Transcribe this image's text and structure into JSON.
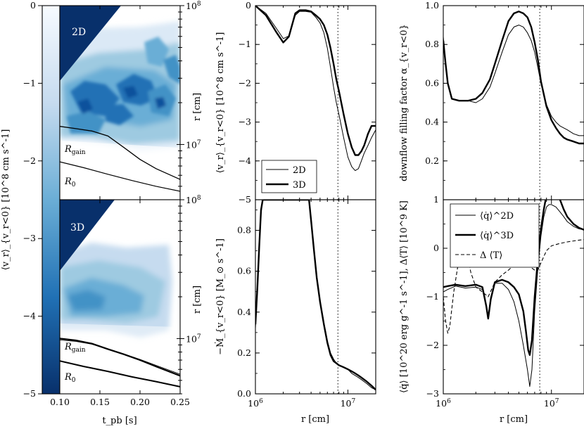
{
  "chart_data": [
    {
      "id": "colorbar",
      "type": "heatmap",
      "ylabel": "⟨v_r⟩_{v_r<0} [10^8 cm s^-1]",
      "ylim": [
        -5,
        0
      ],
      "yticks": [
        "0",
        "−1",
        "−2",
        "−3",
        "−4",
        "−5"
      ],
      "colormap": [
        "#f7fbff",
        "#c6dbef",
        "#6baed6",
        "#2171b5",
        "#08306b"
      ]
    },
    {
      "id": "panel-2d-spacetime",
      "type": "heatmap",
      "label": "2D",
      "xlim": [
        0.1,
        0.25
      ],
      "ylim_log": [
        4000000,
        100000000
      ],
      "ylabel": "r [cm]",
      "ytick_labels": [
        "10^8",
        "10^7"
      ],
      "curves": [
        {
          "name": "R_gain",
          "t": [
            0.1,
            0.12,
            0.14,
            0.16,
            0.18,
            0.2,
            0.22,
            0.25
          ],
          "r": [
            13500000,
            13000000,
            12500000,
            11500000,
            9500000,
            7800000,
            6700000,
            5600000
          ]
        },
        {
          "name": "R_0",
          "t": [
            0.1,
            0.13,
            0.16,
            0.19,
            0.22,
            0.25
          ],
          "r": [
            7500000,
            6800000,
            6100000,
            5500000,
            5000000,
            4600000
          ]
        }
      ]
    },
    {
      "id": "panel-3d-spacetime",
      "type": "heatmap",
      "label": "3D",
      "xlim": [
        0.1,
        0.25
      ],
      "xlabel": "t_pb [s]",
      "xtick_labels": [
        "0.10",
        "0.15",
        "0.20",
        "0.25"
      ],
      "ylim_log": [
        4000000,
        100000000
      ],
      "ylabel": "r [cm]",
      "ytick_labels": [
        "10^8",
        "10^7"
      ],
      "curves": [
        {
          "name": "R_gain",
          "t": [
            0.1,
            0.12,
            0.14,
            0.16,
            0.18,
            0.2,
            0.22,
            0.25
          ],
          "r": [
            10000000,
            9700000,
            9200000,
            8400000,
            7700000,
            7000000,
            6300000,
            5400000
          ]
        },
        {
          "name": "R_0",
          "t": [
            0.1,
            0.13,
            0.16,
            0.19,
            0.22,
            0.25
          ],
          "r": [
            6900000,
            6300000,
            5800000,
            5300000,
            4900000,
            4500000
          ]
        }
      ]
    },
    {
      "id": "panel-vr",
      "type": "line",
      "xscale": "log",
      "xlim": [
        1000000,
        20000000
      ],
      "ylim": [
        -5,
        0
      ],
      "ylabel": "⟨v_r⟩_{v_r<0} [10^8 cm s^-1]",
      "yticks": [
        "0",
        "−1",
        "−2",
        "−3",
        "−4",
        "−5"
      ],
      "vline": 7800000,
      "legend": [
        "2D",
        "3D"
      ],
      "series": [
        {
          "name": "2D",
          "x": [
            1000000,
            1300000,
            1700000,
            2000000,
            2300000,
            2700000,
            3000000,
            3500000,
            4000000,
            4500000,
            5000000,
            5500000,
            6000000,
            6500000,
            7000000,
            7500000,
            8000000,
            9000000,
            10000000,
            11000000,
            12000000,
            13000000,
            14000000,
            15000000,
            16500000,
            18000000,
            20000000
          ],
          "y": [
            0,
            -0.2,
            -0.6,
            -0.85,
            -0.78,
            -0.25,
            -0.15,
            -0.15,
            -0.17,
            -0.3,
            -0.45,
            -0.7,
            -1.1,
            -1.6,
            -2.1,
            -2.5,
            -2.8,
            -3.4,
            -3.9,
            -4.15,
            -4.25,
            -4.2,
            -4.0,
            -3.8,
            -3.6,
            -3.4,
            -3.2
          ]
        },
        {
          "name": "3D",
          "x": [
            1000000,
            1300000,
            1700000,
            2000000,
            2300000,
            2700000,
            3000000,
            3500000,
            4000000,
            4500000,
            5000000,
            5500000,
            6000000,
            6500000,
            7000000,
            7500000,
            8000000,
            9000000,
            10000000,
            11000000,
            12000000,
            13000000,
            14000000,
            15000000,
            16500000,
            18000000,
            20000000
          ],
          "y": [
            0,
            -0.25,
            -0.7,
            -0.95,
            -0.8,
            -0.2,
            -0.12,
            -0.12,
            -0.15,
            -0.25,
            -0.35,
            -0.5,
            -0.75,
            -1.1,
            -1.5,
            -1.9,
            -2.2,
            -2.8,
            -3.3,
            -3.65,
            -3.85,
            -3.85,
            -3.75,
            -3.6,
            -3.3,
            -3.1,
            -3.1
          ]
        }
      ]
    },
    {
      "id": "panel-alpha",
      "type": "line",
      "xscale": "log",
      "xlim": [
        1000000,
        20000000
      ],
      "ylim": [
        0,
        1
      ],
      "ylabel": "downflow filling factor α_{v_r<0}",
      "yticks": [
        "0.2",
        "0.4",
        "0.6",
        "0.8",
        "1.0"
      ],
      "vline": 7800000,
      "series": [
        {
          "name": "2D",
          "x": [
            1000000,
            1050000,
            1100000,
            1200000,
            1400000,
            1700000,
            2000000,
            2300000,
            2700000,
            3000000,
            3500000,
            4000000,
            4500000,
            5000000,
            5500000,
            6000000,
            6500000,
            7000000,
            7500000,
            8000000,
            9000000,
            10000000,
            11000000,
            12000000,
            13000000,
            14000000,
            16000000,
            18000000,
            20000000
          ],
          "y": [
            0.84,
            0.7,
            0.6,
            0.52,
            0.51,
            0.51,
            0.5,
            0.52,
            0.58,
            0.65,
            0.76,
            0.85,
            0.89,
            0.9,
            0.89,
            0.86,
            0.82,
            0.76,
            0.68,
            0.6,
            0.49,
            0.43,
            0.4,
            0.38,
            0.37,
            0.36,
            0.34,
            0.33,
            0.33
          ]
        },
        {
          "name": "3D",
          "x": [
            1000000,
            1050000,
            1100000,
            1200000,
            1400000,
            1700000,
            2000000,
            2300000,
            2700000,
            3000000,
            3500000,
            4000000,
            4500000,
            5000000,
            5500000,
            6000000,
            6500000,
            7000000,
            7500000,
            8000000,
            9000000,
            10000000,
            11000000,
            12000000,
            13000000,
            14000000,
            16000000,
            18000000,
            20000000
          ],
          "y": [
            0.82,
            0.7,
            0.6,
            0.52,
            0.51,
            0.51,
            0.52,
            0.55,
            0.62,
            0.7,
            0.82,
            0.92,
            0.96,
            0.97,
            0.96,
            0.94,
            0.89,
            0.81,
            0.72,
            0.61,
            0.48,
            0.41,
            0.37,
            0.34,
            0.32,
            0.31,
            0.3,
            0.29,
            0.29
          ]
        }
      ]
    },
    {
      "id": "panel-mdot",
      "type": "line",
      "xscale": "log",
      "xlim": [
        1000000,
        20000000
      ],
      "xlabel": "r [cm]",
      "xtick_labels": [
        "10^6",
        "10^7"
      ],
      "ylim": [
        0,
        0.95
      ],
      "ylabel": "−Ṁ_{v_r<0} [M_⊙ s^-1]",
      "yticks": [
        "0.0",
        "0.2",
        "0.4",
        "0.6",
        "0.8"
      ],
      "vline": 7800000,
      "series": [
        {
          "name": "2D",
          "x": [
            1000000,
            1050000,
            1100000,
            1150000,
            1200000,
            1250000,
            3800000,
            4000000,
            4300000,
            4600000,
            5000000,
            5500000,
            6000000,
            6500000,
            7000000,
            7500000,
            8000000,
            9000000,
            10000000,
            11000000,
            12000000,
            13000000,
            14000000,
            16000000,
            18000000,
            20000000
          ],
          "y": [
            0.32,
            0.5,
            0.7,
            0.88,
            0.95,
            0.95,
            0.95,
            0.85,
            0.7,
            0.57,
            0.46,
            0.35,
            0.26,
            0.2,
            0.17,
            0.15,
            0.14,
            0.13,
            0.12,
            0.1,
            0.09,
            0.08,
            0.07,
            0.05,
            0.03,
            0.02
          ]
        },
        {
          "name": "3D",
          "x": [
            1000000,
            1050000,
            1100000,
            1150000,
            1200000,
            1250000,
            3800000,
            4000000,
            4300000,
            4600000,
            5000000,
            5500000,
            6000000,
            6500000,
            7000000,
            7500000,
            8000000,
            9000000,
            10000000,
            11000000,
            12000000,
            13000000,
            14000000,
            16000000,
            18000000,
            20000000
          ],
          "y": [
            0.34,
            0.52,
            0.72,
            0.9,
            0.95,
            0.95,
            0.95,
            0.85,
            0.7,
            0.57,
            0.45,
            0.34,
            0.25,
            0.19,
            0.16,
            0.15,
            0.14,
            0.13,
            0.12,
            0.11,
            0.1,
            0.09,
            0.08,
            0.06,
            0.04,
            0.02
          ]
        }
      ]
    },
    {
      "id": "panel-qdot",
      "type": "line",
      "xscale": "log",
      "xlim": [
        1000000,
        20000000
      ],
      "xlabel": "r [cm]",
      "xtick_labels": [
        "10^6",
        "10^7"
      ],
      "ylim": [
        -3,
        1
      ],
      "ylabel": "⟨q̇⟩ [10^20 erg g^-1 s^-1], Δ⟨T⟩ [10^9 K]",
      "yticks": [
        "1",
        "0",
        "−1",
        "−2",
        "−3"
      ],
      "vline": 7800000,
      "legend": [
        "⟨q̇⟩^2D",
        "⟨q̇⟩^3D",
        "Δ ⟨T⟩"
      ],
      "series": [
        {
          "name": "⟨q̇⟩^2D",
          "x": [
            1000000,
            1100000,
            1300000,
            1600000,
            2000000,
            2300000,
            2500000,
            2600000,
            2750000,
            3000000,
            3500000,
            4000000,
            4500000,
            5000000,
            5500000,
            6000000,
            6300000,
            6600000,
            7000000,
            7500000,
            8000000,
            8500000,
            9000000,
            9500000,
            10000000,
            11000000,
            12000000,
            13000000,
            14000000,
            16000000,
            18000000,
            20000000
          ],
          "y": [
            -0.9,
            -0.85,
            -0.78,
            -0.82,
            -0.8,
            -0.85,
            -1.2,
            -1.4,
            -1.0,
            -0.72,
            -0.72,
            -0.85,
            -1.1,
            -1.5,
            -2.0,
            -2.5,
            -2.85,
            -2.5,
            -1.3,
            -0.4,
            0.25,
            0.65,
            0.85,
            0.9,
            0.9,
            0.85,
            0.75,
            0.65,
            0.55,
            0.45,
            0.4,
            0.38
          ]
        },
        {
          "name": "⟨q̇⟩^3D",
          "x": [
            1000000,
            1100000,
            1300000,
            1600000,
            2000000,
            2300000,
            2500000,
            2600000,
            2750000,
            3000000,
            3500000,
            4000000,
            4500000,
            5000000,
            5500000,
            5800000,
            6100000,
            6300000,
            6600000,
            7000000,
            7500000,
            8000000,
            8500000,
            9000000,
            9500000,
            10000000,
            10500000,
            11000000,
            12000000,
            13000000,
            14000000,
            16000000,
            18000000,
            20000000
          ],
          "y": [
            -0.8,
            -0.78,
            -0.75,
            -0.78,
            -0.75,
            -0.8,
            -1.2,
            -1.45,
            -1.05,
            -0.7,
            -0.65,
            -0.7,
            -0.8,
            -0.95,
            -1.3,
            -1.7,
            -2.1,
            -2.2,
            -1.9,
            -1.0,
            -0.2,
            0.4,
            0.8,
            1.1,
            1.3,
            1.35,
            1.3,
            1.2,
            1.0,
            0.8,
            0.65,
            0.5,
            0.42,
            0.38
          ]
        },
        {
          "name": "Δ ⟨T⟩",
          "x": [
            1000000,
            1050000,
            1100000,
            1150000,
            1250000,
            1400000,
            1550000,
            1650000,
            1800000,
            2000000,
            2300000,
            2600000,
            3000000,
            3500000,
            4000000,
            4500000,
            5000000,
            5500000,
            6000000,
            6500000,
            7000000,
            7500000,
            8000000,
            9000000,
            10000000,
            12000000,
            14000000,
            17000000,
            20000000
          ],
          "y": [
            -1.0,
            -1.5,
            -1.75,
            -1.6,
            -0.9,
            -0.2,
            0.0,
            -0.1,
            -0.5,
            -0.8,
            -0.9,
            -1.0,
            -0.7,
            -0.55,
            -0.45,
            -0.35,
            -0.3,
            -0.3,
            -0.35,
            -0.4,
            -0.45,
            -0.45,
            -0.3,
            -0.05,
            0.05,
            0.1,
            0.13,
            0.16,
            0.18
          ]
        }
      ]
    }
  ]
}
